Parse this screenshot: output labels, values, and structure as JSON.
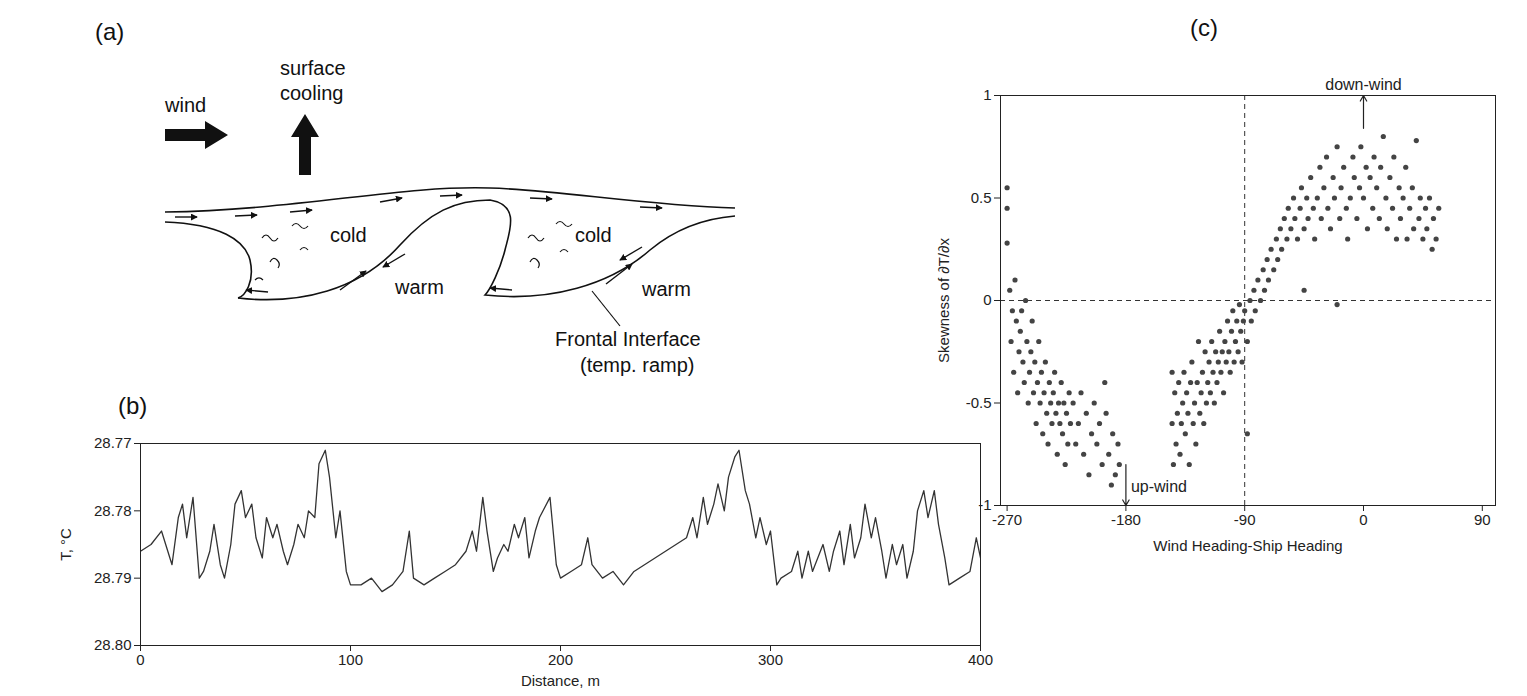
{
  "diagram": {
    "panel": "(a)",
    "wind": "wind",
    "surface_cooling": "surface cooling",
    "cold": [
      "cold",
      "cold"
    ],
    "warm": [
      "warm",
      "warm"
    ],
    "interface": [
      "Frontal Interface",
      "(temp. ramp)"
    ]
  },
  "chart_data": [
    {
      "type": "line",
      "panel": "(b)",
      "xlabel": "Distance, m",
      "ylabel": "T, °C",
      "color": "#333333",
      "x": [
        0,
        5,
        10,
        15,
        18,
        20,
        22,
        25,
        28,
        30,
        33,
        35,
        38,
        40,
        43,
        45,
        48,
        50,
        53,
        55,
        58,
        60,
        63,
        65,
        68,
        70,
        73,
        75,
        78,
        80,
        83,
        85,
        88,
        90,
        93,
        95,
        98,
        100,
        105,
        110,
        115,
        120,
        125,
        128,
        130,
        135,
        140,
        145,
        150,
        155,
        158,
        160,
        163,
        165,
        168,
        170,
        173,
        175,
        178,
        180,
        183,
        185,
        188,
        190,
        195,
        198,
        200,
        205,
        210,
        213,
        215,
        220,
        225,
        230,
        235,
        240,
        245,
        250,
        255,
        260,
        263,
        265,
        268,
        270,
        273,
        275,
        278,
        280,
        283,
        285,
        288,
        290,
        293,
        295,
        298,
        300,
        303,
        305,
        310,
        313,
        315,
        318,
        320,
        325,
        328,
        330,
        333,
        335,
        338,
        340,
        343,
        345,
        348,
        350,
        353,
        355,
        358,
        360,
        363,
        365,
        368,
        370,
        373,
        375,
        378,
        380,
        383,
        385,
        390,
        395,
        398,
        400
      ],
      "values": [
        28.786,
        28.785,
        28.783,
        28.788,
        28.781,
        28.779,
        28.784,
        28.778,
        28.79,
        28.789,
        28.786,
        28.782,
        28.788,
        28.79,
        28.785,
        28.779,
        28.777,
        28.781,
        28.779,
        28.784,
        28.787,
        28.781,
        28.784,
        28.782,
        28.786,
        28.788,
        28.785,
        28.782,
        28.784,
        28.78,
        28.781,
        28.773,
        28.771,
        28.775,
        28.784,
        28.78,
        28.789,
        28.791,
        28.791,
        28.79,
        28.792,
        28.791,
        28.789,
        28.783,
        28.79,
        28.791,
        28.79,
        28.789,
        28.788,
        28.786,
        28.783,
        28.786,
        28.778,
        28.783,
        28.789,
        28.787,
        28.785,
        28.786,
        28.782,
        28.784,
        28.781,
        28.787,
        28.783,
        28.781,
        28.778,
        28.788,
        28.79,
        28.789,
        28.788,
        28.784,
        28.788,
        28.79,
        28.789,
        28.791,
        28.789,
        28.788,
        28.787,
        28.786,
        28.785,
        28.784,
        28.781,
        28.784,
        28.778,
        28.782,
        28.779,
        28.776,
        28.78,
        28.775,
        28.772,
        28.771,
        28.777,
        28.779,
        28.784,
        28.781,
        28.785,
        28.783,
        28.791,
        28.79,
        28.789,
        28.786,
        28.79,
        28.786,
        28.789,
        28.785,
        28.789,
        28.786,
        28.783,
        28.788,
        28.782,
        28.787,
        28.784,
        28.779,
        28.784,
        28.781,
        28.786,
        28.79,
        28.785,
        28.788,
        28.785,
        28.79,
        28.786,
        28.78,
        28.777,
        28.781,
        28.777,
        28.782,
        28.787,
        28.791,
        28.79,
        28.789,
        28.784,
        28.787
      ],
      "xlim": [
        0,
        400
      ],
      "xticks": [
        0,
        100,
        200,
        300,
        400
      ],
      "ylim": [
        28.8,
        28.77
      ],
      "yticks": [
        28.77,
        28.78,
        28.79,
        {
          "value": 28.8,
          "label": "28.80"
        }
      ]
    },
    {
      "type": "scatter",
      "panel": "(c)",
      "xlabel": "Wind Heading-Ship Heading",
      "ylabel": "Skewness of ∂T/∂x",
      "color": "#444444",
      "marker": "circle",
      "x": [
        -270,
        -270,
        -270,
        -268,
        -267,
        -266,
        -265,
        -264,
        -263,
        -262,
        -261,
        -260,
        -259,
        -258,
        -257,
        -256,
        -255,
        -254,
        -253,
        -252,
        -251,
        -250,
        -249,
        -248,
        -247,
        -246,
        -245,
        -244,
        -243,
        -242,
        -241,
        -240,
        -239,
        -238,
        -237,
        -236,
        -235,
        -234,
        -233,
        -232,
        -231,
        -230,
        -229,
        -228,
        -227,
        -226,
        -225,
        -224,
        -223,
        -222,
        -220,
        -218,
        -216,
        -214,
        -212,
        -210,
        -208,
        -206,
        -204,
        -202,
        -200,
        -198,
        -196,
        -195,
        -193,
        -191,
        -190,
        -188,
        -186,
        -185,
        -145,
        -145,
        -144,
        -143,
        -142,
        -141,
        -140,
        -139,
        -138,
        -137,
        -136,
        -135,
        -134,
        -133,
        -132,
        -131,
        -130,
        -129,
        -128,
        -127,
        -126,
        -125,
        -124,
        -123,
        -122,
        -121,
        -120,
        -119,
        -118,
        -117,
        -116,
        -115,
        -114,
        -113,
        -112,
        -111,
        -110,
        -109,
        -108,
        -107,
        -106,
        -105,
        -104,
        -103,
        -102,
        -101,
        -100,
        -99,
        -98,
        -97,
        -96,
        -95,
        -94,
        -93,
        -92,
        -91,
        -90,
        -88,
        -88,
        -86,
        -85,
        -83,
        -82,
        -80,
        -78,
        -76,
        -75,
        -73,
        -72,
        -70,
        -68,
        -66,
        -65,
        -63,
        -62,
        -60,
        -58,
        -57,
        -55,
        -53,
        -52,
        -50,
        -48,
        -47,
        -45,
        -43,
        -42,
        -40,
        -38,
        -37,
        -35,
        -33,
        -32,
        -30,
        -28,
        -27,
        -25,
        -23,
        -22,
        -20,
        -18,
        -17,
        -15,
        -13,
        -12,
        -10,
        -8,
        -7,
        -5,
        -3,
        -2,
        0,
        2,
        3,
        5,
        7,
        8,
        10,
        12,
        13,
        15,
        17,
        18,
        20,
        22,
        23,
        25,
        27,
        28,
        30,
        32,
        33,
        35,
        37,
        38,
        40,
        42,
        43,
        45,
        47,
        48,
        50,
        52,
        53,
        55,
        57,
        -20,
        -45
      ],
      "values": [
        0.55,
        0.45,
        0.28,
        0.05,
        -0.2,
        -0.05,
        -0.35,
        0.1,
        -0.1,
        -0.45,
        -0.25,
        -0.15,
        -0.05,
        -0.3,
        -0.4,
        0,
        -0.2,
        -0.5,
        -0.35,
        -0.25,
        -0.1,
        -0.45,
        -0.3,
        -0.6,
        -0.4,
        -0.2,
        -0.5,
        -0.35,
        -0.65,
        -0.45,
        -0.3,
        -0.55,
        -0.7,
        -0.4,
        -0.5,
        -0.6,
        -0.45,
        -0.35,
        -0.55,
        -0.75,
        -0.5,
        -0.6,
        -0.4,
        -0.65,
        -0.5,
        -0.8,
        -0.55,
        -0.7,
        -0.45,
        -0.6,
        -0.5,
        -0.7,
        -0.6,
        -0.45,
        -0.75,
        -0.55,
        -0.85,
        -0.65,
        -0.5,
        -0.7,
        -0.6,
        -0.8,
        -0.4,
        -0.55,
        -0.75,
        -0.9,
        -0.65,
        -0.85,
        -0.7,
        -0.8,
        -0.35,
        -0.6,
        -0.8,
        -0.45,
        -0.7,
        -0.55,
        -0.4,
        -0.75,
        -0.6,
        -0.5,
        -0.35,
        -0.65,
        -0.45,
        -0.55,
        -0.8,
        -0.4,
        -0.3,
        -0.6,
        -0.5,
        -0.7,
        -0.4,
        -0.2,
        -0.55,
        -0.45,
        -0.35,
        -0.6,
        -0.25,
        -0.5,
        -0.4,
        -0.3,
        -0.45,
        -0.2,
        -0.35,
        -0.5,
        -0.25,
        -0.4,
        -0.3,
        -0.15,
        -0.35,
        -0.25,
        -0.45,
        -0.2,
        -0.3,
        -0.1,
        -0.25,
        -0.35,
        -0.15,
        -0.05,
        -0.3,
        -0.2,
        -0.1,
        -0.25,
        -0.02,
        -0.15,
        -0.3,
        -0.1,
        -0.05,
        -0.65,
        -0.2,
        0,
        -0.1,
        0.05,
        -0.05,
        0.1,
        0,
        0.15,
        0.05,
        0.2,
        0.1,
        0.25,
        0.15,
        0.3,
        0.2,
        0.35,
        0.25,
        0.4,
        0.3,
        0.45,
        0.35,
        0.5,
        0.4,
        0.3,
        0.45,
        0.55,
        0.35,
        0.5,
        0.4,
        0.6,
        0.45,
        0.3,
        0.5,
        0.65,
        0.4,
        0.55,
        0.7,
        0.45,
        0.35,
        0.6,
        0.5,
        0.75,
        0.4,
        0.55,
        0.65,
        0.45,
        0.3,
        0.5,
        0.7,
        0.6,
        0.4,
        0.55,
        0.75,
        0.5,
        0.65,
        0.35,
        0.6,
        0.45,
        0.7,
        0.55,
        0.4,
        0.65,
        0.8,
        0.5,
        0.35,
        0.6,
        0.45,
        0.7,
        0.3,
        0.55,
        0.4,
        0.5,
        0.65,
        0.3,
        0.45,
        0.55,
        0.35,
        0.78,
        0.4,
        0.5,
        0.3,
        0.45,
        0.35,
        0.5,
        0.25,
        0.4,
        0.3,
        0.45,
        -0.02,
        0.05
      ],
      "xlim": [
        -275,
        100
      ],
      "xticks": [
        -270,
        -180,
        -90,
        0,
        90
      ],
      "ylim": [
        -1,
        1
      ],
      "yticks": [
        -1,
        -0.5,
        0,
        0.5,
        1
      ],
      "reference_lines": {
        "x": -90,
        "y": 0,
        "line_style": "dashed"
      },
      "annotations": [
        {
          "text": "down-wind",
          "x": 0,
          "y": 1
        },
        {
          "text": "up-wind",
          "x": -180,
          "y": -1
        }
      ]
    }
  ]
}
